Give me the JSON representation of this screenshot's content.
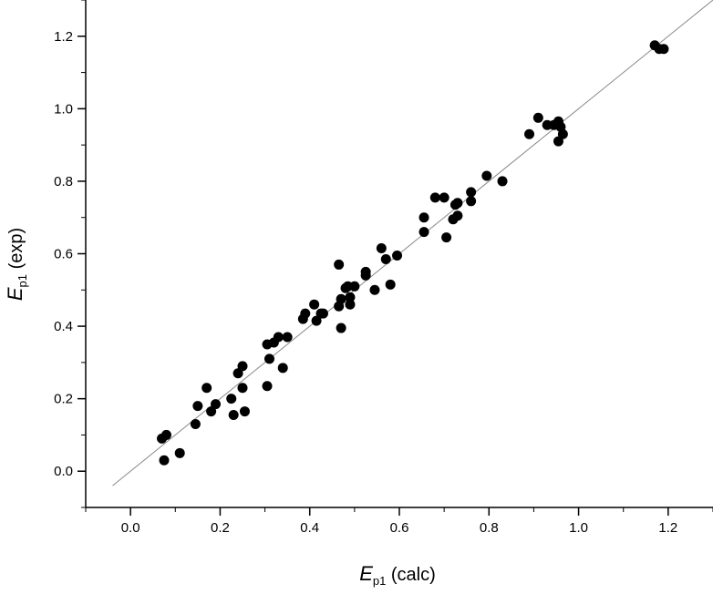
{
  "chart_data": {
    "type": "scatter",
    "xlabel": {
      "symbol": "E",
      "subscript": "p1",
      "suffix": " (calc)"
    },
    "ylabel": {
      "symbol": "E",
      "subscript": "p1",
      "suffix": " (exp)"
    },
    "xlim": [
      -0.1,
      1.3
    ],
    "ylim": [
      -0.1,
      1.3
    ],
    "xticks": [
      0.0,
      0.2,
      0.4,
      0.6,
      0.8,
      1.0,
      1.2
    ],
    "xtick_labels": [
      "0.0",
      "0.2",
      "0.4",
      "0.6",
      "0.8",
      "1.0",
      "1.2"
    ],
    "yticks": [
      0.0,
      0.2,
      0.4,
      0.6,
      0.8,
      1.0,
      1.2
    ],
    "ytick_labels": [
      "0.0",
      "0.2",
      "0.4",
      "0.6",
      "0.8",
      "1.0",
      "1.2"
    ],
    "grid": false,
    "legend": "none",
    "marker_color": "#000000",
    "fit_line": {
      "color": "#888888",
      "x": [
        -0.04,
        1.3
      ],
      "y": [
        -0.04,
        1.3
      ]
    },
    "points": [
      [
        0.07,
        0.09
      ],
      [
        0.08,
        0.1
      ],
      [
        0.075,
        0.03
      ],
      [
        0.11,
        0.05
      ],
      [
        0.145,
        0.13
      ],
      [
        0.15,
        0.18
      ],
      [
        0.17,
        0.23
      ],
      [
        0.18,
        0.165
      ],
      [
        0.19,
        0.185
      ],
      [
        0.225,
        0.2
      ],
      [
        0.23,
        0.155
      ],
      [
        0.24,
        0.27
      ],
      [
        0.25,
        0.29
      ],
      [
        0.25,
        0.23
      ],
      [
        0.255,
        0.165
      ],
      [
        0.305,
        0.235
      ],
      [
        0.305,
        0.35
      ],
      [
        0.31,
        0.31
      ],
      [
        0.32,
        0.355
      ],
      [
        0.33,
        0.37
      ],
      [
        0.34,
        0.285
      ],
      [
        0.35,
        0.37
      ],
      [
        0.385,
        0.42
      ],
      [
        0.39,
        0.435
      ],
      [
        0.41,
        0.46
      ],
      [
        0.415,
        0.415
      ],
      [
        0.425,
        0.435
      ],
      [
        0.43,
        0.435
      ],
      [
        0.465,
        0.57
      ],
      [
        0.465,
        0.455
      ],
      [
        0.47,
        0.475
      ],
      [
        0.47,
        0.395
      ],
      [
        0.48,
        0.505
      ],
      [
        0.485,
        0.51
      ],
      [
        0.49,
        0.48
      ],
      [
        0.49,
        0.46
      ],
      [
        0.5,
        0.51
      ],
      [
        0.525,
        0.55
      ],
      [
        0.525,
        0.54
      ],
      [
        0.545,
        0.5
      ],
      [
        0.56,
        0.615
      ],
      [
        0.57,
        0.585
      ],
      [
        0.58,
        0.515
      ],
      [
        0.595,
        0.595
      ],
      [
        0.655,
        0.7
      ],
      [
        0.655,
        0.66
      ],
      [
        0.68,
        0.755
      ],
      [
        0.7,
        0.755
      ],
      [
        0.705,
        0.645
      ],
      [
        0.72,
        0.695
      ],
      [
        0.725,
        0.735
      ],
      [
        0.73,
        0.74
      ],
      [
        0.73,
        0.705
      ],
      [
        0.76,
        0.77
      ],
      [
        0.76,
        0.745
      ],
      [
        0.795,
        0.815
      ],
      [
        0.83,
        0.8
      ],
      [
        0.89,
        0.93
      ],
      [
        0.91,
        0.975
      ],
      [
        0.93,
        0.955
      ],
      [
        0.945,
        0.955
      ],
      [
        0.955,
        0.965
      ],
      [
        0.955,
        0.91
      ],
      [
        0.96,
        0.95
      ],
      [
        0.965,
        0.93
      ],
      [
        1.17,
        1.175
      ],
      [
        1.18,
        1.165
      ],
      [
        1.19,
        1.165
      ]
    ]
  }
}
